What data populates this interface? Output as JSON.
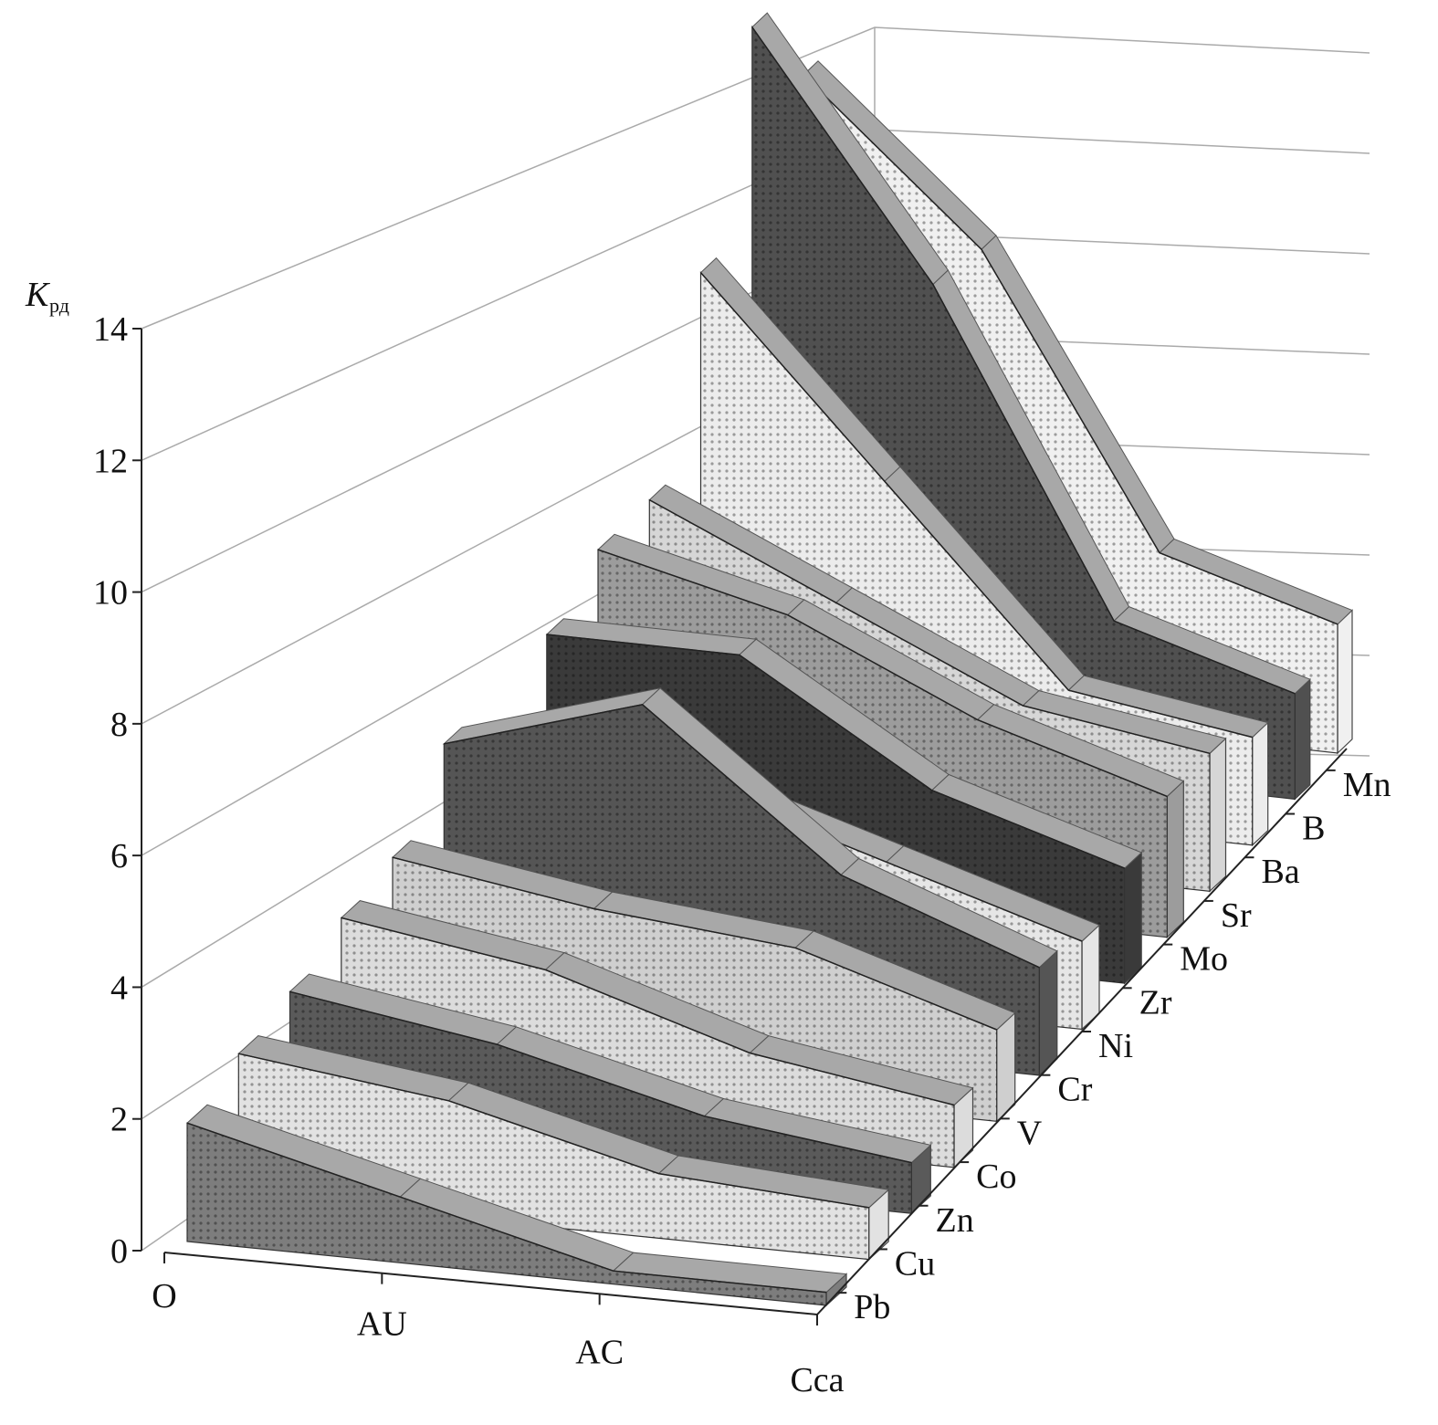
{
  "chart_data": {
    "type": "ribbon",
    "y_label": {
      "symbol": "K",
      "subscript": "рд"
    },
    "categories": [
      "O",
      "AU",
      "AC",
      "Cca"
    ],
    "series": [
      {
        "name": "Pb",
        "color": "#7d7d7d",
        "values": [
          1.8,
          1.0,
          0.2,
          0.2
        ]
      },
      {
        "name": "Cu",
        "color": "#e2e2e2",
        "values": [
          2.2,
          1.8,
          1.0,
          0.8
        ]
      },
      {
        "name": "Zn",
        "color": "#5a5a5a",
        "values": [
          2.5,
          2.0,
          1.2,
          0.8
        ]
      },
      {
        "name": "Co",
        "color": "#dcdcdc",
        "values": [
          3.0,
          2.5,
          1.5,
          1.0
        ]
      },
      {
        "name": "V",
        "color": "#cfcfcf",
        "values": [
          3.3,
          2.8,
          2.5,
          1.5
        ]
      },
      {
        "name": "Cr",
        "color": "#555555",
        "values": [
          4.5,
          5.5,
          3.0,
          1.8
        ]
      },
      {
        "name": "Ni",
        "color": "#e6e6e6",
        "values": [
          3.8,
          3.5,
          2.5,
          1.5
        ]
      },
      {
        "name": "Zr",
        "color": "#3a3a3a",
        "values": [
          5.0,
          5.0,
          3.0,
          2.0
        ]
      },
      {
        "name": "Mo",
        "color": "#9c9c9c",
        "values": [
          5.8,
          5.0,
          3.5,
          2.5
        ]
      },
      {
        "name": "Sr",
        "color": "#d6d6d6",
        "values": [
          6.0,
          4.5,
          3.0,
          2.5
        ]
      },
      {
        "name": "Ba",
        "color": "#ececec",
        "values": [
          9.5,
          6.0,
          2.5,
          2.0
        ]
      },
      {
        "name": "B",
        "color": "#505050",
        "values": [
          13.5,
          9.0,
          3.0,
          2.0
        ]
      },
      {
        "name": "Mn",
        "color": "#f0f0f0",
        "values": [
          12.0,
          9.0,
          3.5,
          2.5
        ]
      }
    ],
    "ylim": [
      0,
      14
    ],
    "yticks": [
      0,
      2,
      4,
      6,
      8,
      10,
      12,
      14
    ],
    "grid": true
  }
}
